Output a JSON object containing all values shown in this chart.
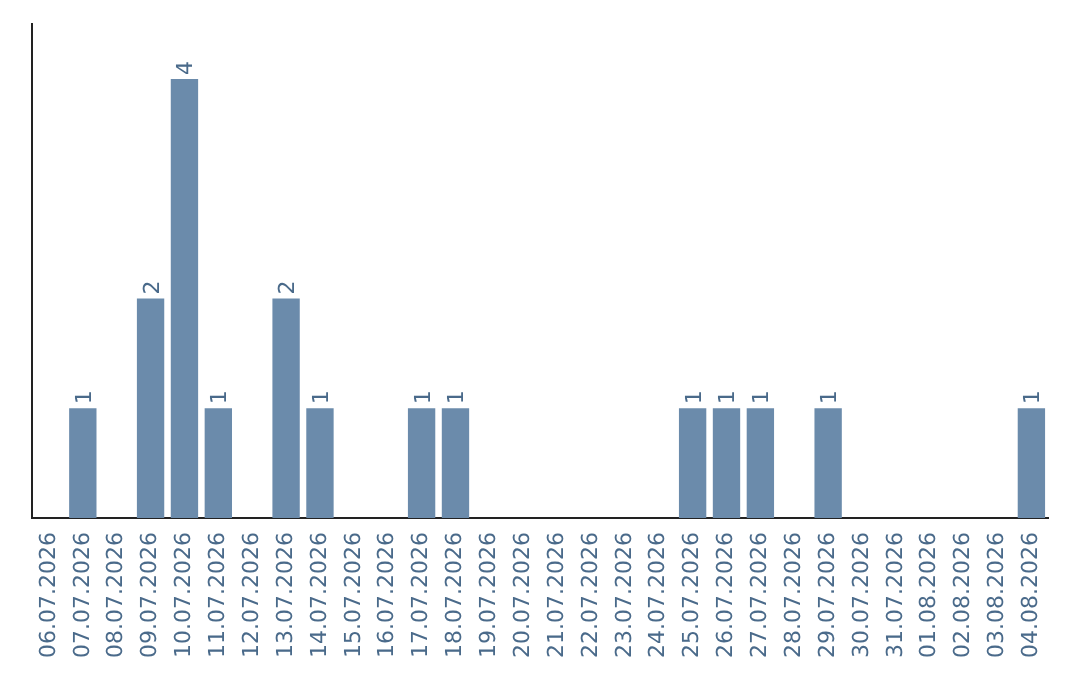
{
  "chart_data": {
    "type": "bar",
    "categories": [
      "06.07.2026",
      "07.07.2026",
      "08.07.2026",
      "09.07.2026",
      "10.07.2026",
      "11.07.2026",
      "12.07.2026",
      "13.07.2026",
      "14.07.2026",
      "15.07.2026",
      "16.07.2026",
      "17.07.2026",
      "18.07.2026",
      "19.07.2026",
      "20.07.2026",
      "21.07.2026",
      "22.07.2026",
      "23.07.2026",
      "24.07.2026",
      "25.07.2026",
      "26.07.2026",
      "27.07.2026",
      "28.07.2026",
      "29.07.2026",
      "30.07.2026",
      "31.07.2026",
      "01.08.2026",
      "02.08.2026",
      "03.08.2026",
      "04.08.2026"
    ],
    "values": [
      0,
      1,
      0,
      2,
      4,
      1,
      0,
      2,
      1,
      0,
      0,
      1,
      1,
      0,
      0,
      0,
      0,
      0,
      0,
      1,
      1,
      1,
      0,
      1,
      0,
      0,
      0,
      0,
      0,
      1
    ],
    "value_labels": [
      null,
      "1",
      null,
      "2",
      "4",
      "1",
      null,
      "2",
      "1",
      null,
      null,
      "1",
      "1",
      null,
      null,
      null,
      null,
      null,
      null,
      "1",
      "1",
      "1",
      null,
      "1",
      null,
      null,
      null,
      null,
      null,
      "1"
    ],
    "color": "#6b8bab",
    "grid": false,
    "legend": false,
    "tick_labels": "x"
  }
}
